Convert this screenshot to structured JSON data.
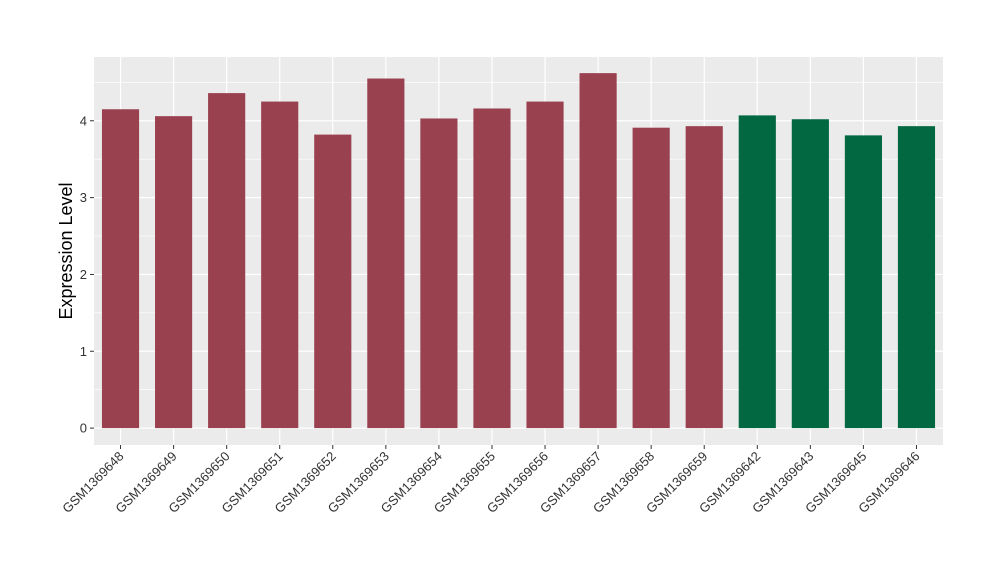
{
  "chart_data": {
    "type": "bar",
    "title": "",
    "xlabel": "",
    "ylabel": "Expression Level",
    "ylim": [
      -0.22,
      4.83
    ],
    "yticks": [
      0,
      1,
      2,
      3,
      4
    ],
    "grid": true,
    "categories": [
      "GSM1369648",
      "GSM1369649",
      "GSM1369650",
      "GSM1369651",
      "GSM1369652",
      "GSM1369653",
      "GSM1369654",
      "GSM1369655",
      "GSM1369656",
      "GSM1369657",
      "GSM1369658",
      "GSM1369659",
      "GSM1369642",
      "GSM1369643",
      "GSM1369645",
      "GSM1369646"
    ],
    "values": [
      4.15,
      4.06,
      4.36,
      4.25,
      3.82,
      4.55,
      4.03,
      4.16,
      4.25,
      4.62,
      3.91,
      3.93,
      4.07,
      4.02,
      3.81,
      3.93
    ],
    "bar_colors": [
      "#9a4150",
      "#9a4150",
      "#9a4150",
      "#9a4150",
      "#9a4150",
      "#9a4150",
      "#9a4150",
      "#9a4150",
      "#9a4150",
      "#9a4150",
      "#9a4150",
      "#9a4150",
      "#026842",
      "#026842",
      "#026842",
      "#026842"
    ],
    "panel_background": "#ebebeb",
    "gridline_color": "#ffffff"
  }
}
